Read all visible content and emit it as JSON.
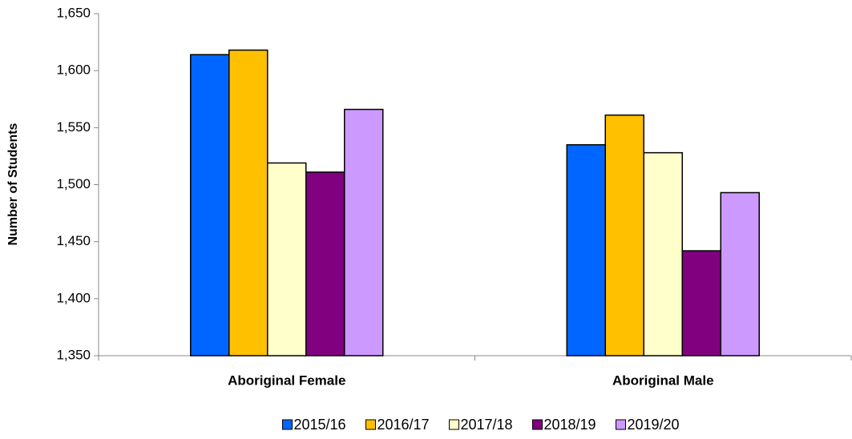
{
  "chart_data": {
    "type": "bar",
    "y_label": "Number of Students",
    "categories": [
      "Aboriginal Female",
      "Aboriginal Male"
    ],
    "series": [
      {
        "name": "2015/16",
        "color": "#0066ff",
        "values": [
          1614,
          1535
        ]
      },
      {
        "name": "2016/17",
        "color": "#ffc000",
        "values": [
          1618,
          1561
        ]
      },
      {
        "name": "2017/18",
        "color": "#ffffcc",
        "values": [
          1519,
          1528
        ]
      },
      {
        "name": "2018/19",
        "color": "#800080",
        "values": [
          1511,
          1442
        ]
      },
      {
        "name": "2019/20",
        "color": "#cc99ff",
        "values": [
          1566,
          1493
        ]
      }
    ],
    "ylim": [
      1350,
      1650
    ],
    "yticks": [
      {
        "value": 1350,
        "label": "1,350"
      },
      {
        "value": 1400,
        "label": "1,400"
      },
      {
        "value": 1450,
        "label": "1,450"
      },
      {
        "value": 1500,
        "label": "1,500"
      },
      {
        "value": 1550,
        "label": "1,550"
      },
      {
        "value": 1600,
        "label": "1,600"
      },
      {
        "value": 1650,
        "label": "1,650"
      }
    ],
    "grid": false,
    "legend": "bottom"
  }
}
